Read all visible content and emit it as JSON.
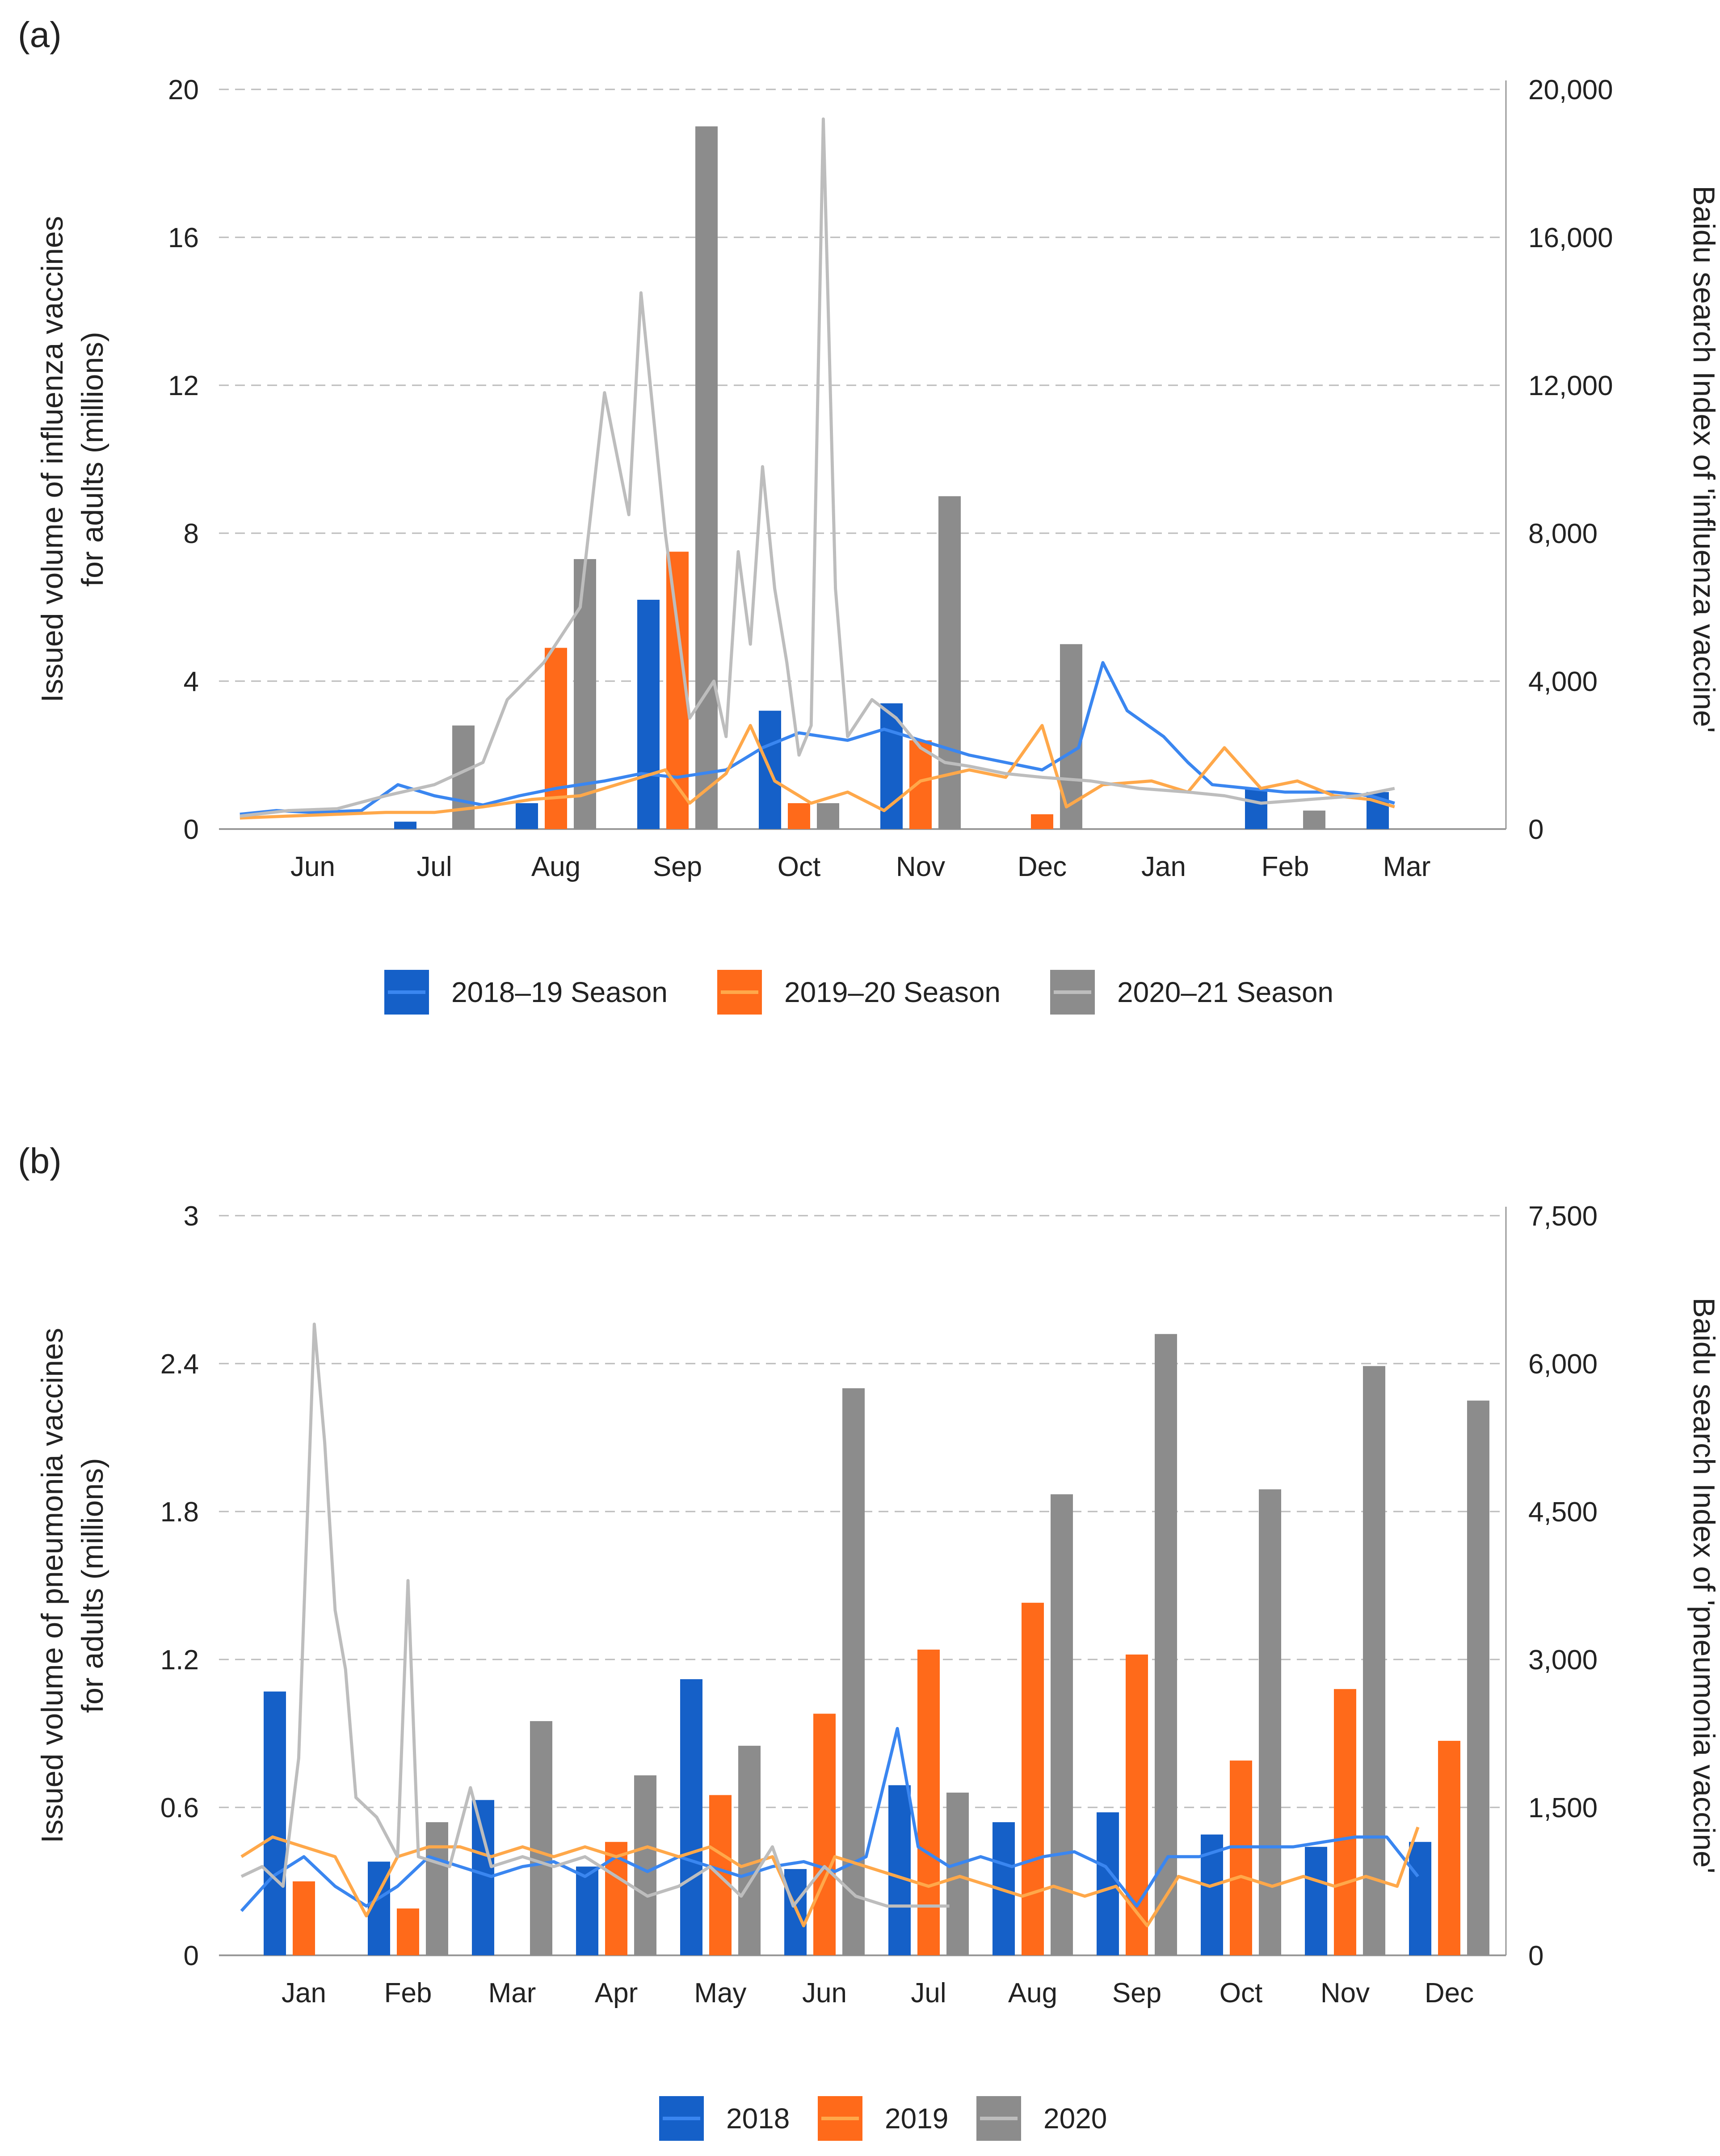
{
  "figure": {
    "title": ""
  },
  "colors": {
    "blue": "#1560c8",
    "blue_line": "#3a86f0",
    "orange": "#ff6a1a",
    "orange_line": "#ffa84a",
    "gray": "#8c8c8c",
    "gray_line": "#bdbdbd",
    "grid": "#bbbbbb",
    "axis": "#999999"
  },
  "chart_data": [
    {
      "panel_label": "(a)",
      "type": "bar",
      "overlay": "line",
      "categories": [
        "Jun",
        "Jul",
        "Aug",
        "Sep",
        "Oct",
        "Nov",
        "Dec",
        "Jan",
        "Feb",
        "Mar"
      ],
      "ylabel": [
        "Issued volume of influenza vaccines",
        "for adults (millions)"
      ],
      "ylabel_right": "Baidu search Index of 'influenza vaccine'",
      "ylim": [
        0,
        20
      ],
      "ylim_right": [
        0,
        20000
      ],
      "yticks": [
        "0",
        "4",
        "8",
        "12",
        "16",
        "20"
      ],
      "yticks_right": [
        "0",
        "4,000",
        "8,000",
        "12,000",
        "16,000",
        "20,000"
      ],
      "grid": true,
      "legend_position": "bottom",
      "series": [
        {
          "name": "2018–19 Season",
          "values": [
            0.0,
            0.2,
            0.7,
            6.2,
            3.2,
            3.4,
            0.0,
            0.0,
            1.1,
            1.0
          ],
          "line": [
            [
              0,
              400
            ],
            [
              0.3,
              500
            ],
            [
              0.6,
              450
            ],
            [
              1,
              500
            ],
            [
              1.3,
              1200
            ],
            [
              1.6,
              900
            ],
            [
              2,
              650
            ],
            [
              2.3,
              900
            ],
            [
              2.6,
              1100
            ],
            [
              3,
              1300
            ],
            [
              3.3,
              1500
            ],
            [
              3.6,
              1400
            ],
            [
              4,
              1600
            ],
            [
              4.3,
              2200
            ],
            [
              4.6,
              2600
            ],
            [
              5,
              2400
            ],
            [
              5.3,
              2700
            ],
            [
              5.6,
              2400
            ],
            [
              6,
              2000
            ],
            [
              6.3,
              1800
            ],
            [
              6.6,
              1600
            ],
            [
              6.9,
              2200
            ],
            [
              7.1,
              4500
            ],
            [
              7.3,
              3200
            ],
            [
              7.6,
              2500
            ],
            [
              7.8,
              1800
            ],
            [
              8,
              1200
            ],
            [
              8.3,
              1100
            ],
            [
              8.6,
              1000
            ],
            [
              9,
              1000
            ],
            [
              9.3,
              900
            ],
            [
              9.5,
              700
            ]
          ]
        },
        {
          "name": "2019–20 Season",
          "values": [
            0.0,
            0.0,
            4.9,
            7.5,
            0.7,
            2.4,
            0.4,
            0.0,
            0.0,
            0.0
          ],
          "line": [
            [
              0,
              300
            ],
            [
              0.4,
              350
            ],
            [
              0.8,
              400
            ],
            [
              1.2,
              450
            ],
            [
              1.6,
              450
            ],
            [
              2,
              600
            ],
            [
              2.4,
              800
            ],
            [
              2.8,
              900
            ],
            [
              3.2,
              1300
            ],
            [
              3.5,
              1600
            ],
            [
              3.7,
              700
            ],
            [
              4,
              1500
            ],
            [
              4.2,
              2800
            ],
            [
              4.4,
              1300
            ],
            [
              4.7,
              700
            ],
            [
              5,
              1000
            ],
            [
              5.3,
              500
            ],
            [
              5.6,
              1300
            ],
            [
              6,
              1600
            ],
            [
              6.3,
              1400
            ],
            [
              6.6,
              2800
            ],
            [
              6.8,
              600
            ],
            [
              7.1,
              1200
            ],
            [
              7.5,
              1300
            ],
            [
              7.8,
              1000
            ],
            [
              8.1,
              2200
            ],
            [
              8.4,
              1100
            ],
            [
              8.7,
              1300
            ],
            [
              9,
              900
            ],
            [
              9.3,
              800
            ],
            [
              9.5,
              600
            ]
          ]
        },
        {
          "name": "2020–21 Season",
          "values": [
            0.0,
            2.8,
            7.3,
            19.0,
            0.7,
            9.0,
            5.0,
            0.0,
            0.5,
            0.0
          ],
          "line": [
            [
              0,
              350
            ],
            [
              0.4,
              500
            ],
            [
              0.8,
              550
            ],
            [
              1.2,
              900
            ],
            [
              1.6,
              1200
            ],
            [
              2,
              1800
            ],
            [
              2.2,
              3500
            ],
            [
              2.5,
              4500
            ],
            [
              2.8,
              6000
            ],
            [
              3,
              11800
            ],
            [
              3.2,
              8500
            ],
            [
              3.3,
              14500
            ],
            [
              3.5,
              8000
            ],
            [
              3.7,
              3000
            ],
            [
              3.9,
              4000
            ],
            [
              4,
              2500
            ],
            [
              4.1,
              7500
            ],
            [
              4.2,
              5000
            ],
            [
              4.3,
              9800
            ],
            [
              4.4,
              6500
            ],
            [
              4.5,
              4500
            ],
            [
              4.6,
              2000
            ],
            [
              4.7,
              2800
            ],
            [
              4.8,
              19200
            ],
            [
              4.9,
              6500
            ],
            [
              5,
              2500
            ],
            [
              5.2,
              3500
            ],
            [
              5.4,
              3000
            ],
            [
              5.6,
              2200
            ],
            [
              5.8,
              1800
            ],
            [
              6,
              1700
            ],
            [
              6.3,
              1500
            ],
            [
              6.6,
              1400
            ],
            [
              7,
              1300
            ],
            [
              7.4,
              1100
            ],
            [
              7.8,
              1000
            ],
            [
              8.1,
              900
            ],
            [
              8.4,
              700
            ],
            [
              8.8,
              800
            ],
            [
              9.2,
              900
            ],
            [
              9.5,
              1100
            ]
          ]
        }
      ]
    },
    {
      "panel_label": "(b)",
      "type": "bar",
      "overlay": "line",
      "categories": [
        "Jan",
        "Feb",
        "Mar",
        "Apr",
        "May",
        "Jun",
        "Jul",
        "Aug",
        "Sep",
        "Oct",
        "Nov",
        "Dec"
      ],
      "ylabel": [
        "Issued volume of pneumonia vaccines",
        "for adults (millions)"
      ],
      "ylabel_right": "Baidu search Index of 'pneumonia vaccine'",
      "ylim": [
        0,
        3
      ],
      "ylim_right": [
        0,
        7500
      ],
      "yticks": [
        "0",
        "0.6",
        "1.2",
        "1.8",
        "2.4",
        "3"
      ],
      "yticks_right": [
        "0",
        "1,500",
        "3,000",
        "4,500",
        "6,000",
        "7,500"
      ],
      "grid": true,
      "legend_position": "bottom",
      "series": [
        {
          "name": "2018",
          "values": [
            1.07,
            0.38,
            0.63,
            0.36,
            1.12,
            0.35,
            0.69,
            0.54,
            0.58,
            0.49,
            0.44,
            0.46
          ],
          "line": [
            [
              0,
              450
            ],
            [
              0.3,
              800
            ],
            [
              0.6,
              1000
            ],
            [
              0.9,
              700
            ],
            [
              1.2,
              500
            ],
            [
              1.5,
              700
            ],
            [
              1.8,
              1000
            ],
            [
              2.1,
              900
            ],
            [
              2.4,
              800
            ],
            [
              2.7,
              900
            ],
            [
              3,
              950
            ],
            [
              3.3,
              800
            ],
            [
              3.6,
              1000
            ],
            [
              3.9,
              850
            ],
            [
              4.2,
              1000
            ],
            [
              4.5,
              900
            ],
            [
              4.8,
              800
            ],
            [
              5.1,
              900
            ],
            [
              5.4,
              950
            ],
            [
              5.7,
              850
            ],
            [
              6,
              1000
            ],
            [
              6.3,
              2300
            ],
            [
              6.5,
              1100
            ],
            [
              6.8,
              900
            ],
            [
              7.1,
              1000
            ],
            [
              7.4,
              900
            ],
            [
              7.7,
              1000
            ],
            [
              8,
              1050
            ],
            [
              8.3,
              900
            ],
            [
              8.6,
              500
            ],
            [
              8.9,
              1000
            ],
            [
              9.2,
              1000
            ],
            [
              9.5,
              1100
            ],
            [
              9.8,
              1100
            ],
            [
              10.1,
              1100
            ],
            [
              10.4,
              1150
            ],
            [
              10.7,
              1200
            ],
            [
              11,
              1200
            ],
            [
              11.3,
              800
            ]
          ]
        },
        {
          "name": "2019",
          "values": [
            0.3,
            0.19,
            0.0,
            0.46,
            0.65,
            0.98,
            1.24,
            1.43,
            1.22,
            0.79,
            1.08,
            0.87
          ],
          "line": [
            [
              0,
              1000
            ],
            [
              0.3,
              1200
            ],
            [
              0.6,
              1100
            ],
            [
              0.9,
              1000
            ],
            [
              1.2,
              400
            ],
            [
              1.5,
              1000
            ],
            [
              1.8,
              1100
            ],
            [
              2.1,
              1100
            ],
            [
              2.4,
              1000
            ],
            [
              2.7,
              1100
            ],
            [
              3,
              1000
            ],
            [
              3.3,
              1100
            ],
            [
              3.6,
              1000
            ],
            [
              3.9,
              1100
            ],
            [
              4.2,
              1000
            ],
            [
              4.5,
              1100
            ],
            [
              4.8,
              900
            ],
            [
              5.1,
              1000
            ],
            [
              5.4,
              300
            ],
            [
              5.7,
              1000
            ],
            [
              6,
              900
            ],
            [
              6.3,
              800
            ],
            [
              6.6,
              700
            ],
            [
              6.9,
              800
            ],
            [
              7.2,
              700
            ],
            [
              7.5,
              600
            ],
            [
              7.8,
              700
            ],
            [
              8.1,
              600
            ],
            [
              8.4,
              700
            ],
            [
              8.7,
              300
            ],
            [
              9,
              800
            ],
            [
              9.3,
              700
            ],
            [
              9.6,
              800
            ],
            [
              9.9,
              700
            ],
            [
              10.2,
              800
            ],
            [
              10.5,
              700
            ],
            [
              10.8,
              800
            ],
            [
              11.1,
              700
            ],
            [
              11.3,
              1300
            ]
          ]
        },
        {
          "name": "2020",
          "values": [
            0.0,
            0.54,
            0.95,
            0.73,
            0.85,
            2.3,
            0.66,
            1.87,
            2.52,
            1.89,
            2.39,
            2.25
          ],
          "line": [
            [
              0,
              800
            ],
            [
              0.2,
              900
            ],
            [
              0.4,
              700
            ],
            [
              0.55,
              2000
            ],
            [
              0.7,
              6400
            ],
            [
              0.8,
              5200
            ],
            [
              0.9,
              3500
            ],
            [
              1,
              2900
            ],
            [
              1.1,
              1600
            ],
            [
              1.3,
              1400
            ],
            [
              1.5,
              1000
            ],
            [
              1.6,
              3800
            ],
            [
              1.7,
              1000
            ],
            [
              2,
              900
            ],
            [
              2.2,
              1700
            ],
            [
              2.4,
              900
            ],
            [
              2.7,
              1000
            ],
            [
              3,
              900
            ],
            [
              3.3,
              1000
            ],
            [
              3.6,
              800
            ],
            [
              3.9,
              600
            ],
            [
              4.2,
              700
            ],
            [
              4.5,
              900
            ],
            [
              4.8,
              600
            ],
            [
              5.1,
              1100
            ],
            [
              5.3,
              500
            ],
            [
              5.6,
              900
            ],
            [
              5.9,
              600
            ],
            [
              6.2,
              500
            ],
            [
              6.5,
              500
            ],
            [
              6.8,
              500
            ]
          ]
        }
      ]
    }
  ]
}
